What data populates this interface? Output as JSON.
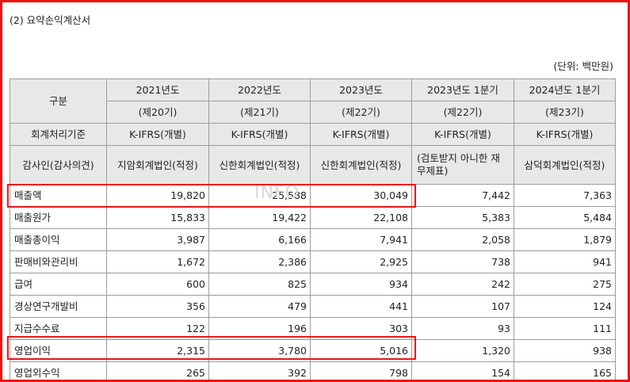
{
  "section_title": "(2) 요약손익계산서",
  "unit": "(단위: 백만원)",
  "watermark": "INFO",
  "table": {
    "category_header": "구분",
    "columns": [
      {
        "year": "2021년도",
        "term": "(제20기)",
        "standard": "K-IFRS(개별)",
        "auditor": "지암회계법인(적정)"
      },
      {
        "year": "2022년도",
        "term": "(제21기)",
        "standard": "K-IFRS(개별)",
        "auditor": "신한회계법인(적정)"
      },
      {
        "year": "2023년도",
        "term": "(제22기)",
        "standard": "K-IFRS(개별)",
        "auditor": "신한회계법인(적정)"
      },
      {
        "year": "2023년도 1분기",
        "term": "(제22기)",
        "standard": "K-IFRS(개별)",
        "auditor": "(검토받지 아니한 재무제표)"
      },
      {
        "year": "2024년도 1분기",
        "term": "(제23기)",
        "standard": "K-IFRS(개별)",
        "auditor": "삼덕회계법인(적정)"
      }
    ],
    "standard_label": "회계처리기준",
    "auditor_label": "감사인(감사의견)",
    "rows": [
      {
        "label": "매출액",
        "values": [
          "19,820",
          "25,588",
          "30,049",
          "7,442",
          "7,363"
        ]
      },
      {
        "label": "매출원가",
        "values": [
          "15,833",
          "19,422",
          "22,108",
          "5,383",
          "5,484"
        ]
      },
      {
        "label": "매출총이익",
        "values": [
          "3,987",
          "6,166",
          "7,941",
          "2,058",
          "1,879"
        ]
      },
      {
        "label": "판매비와관리비",
        "values": [
          "1,672",
          "2,386",
          "2,925",
          "738",
          "941"
        ]
      },
      {
        "label": "급여",
        "values": [
          "600",
          "825",
          "934",
          "242",
          "275"
        ]
      },
      {
        "label": "경상연구개발비",
        "values": [
          "356",
          "479",
          "441",
          "107",
          "124"
        ]
      },
      {
        "label": "지급수수료",
        "values": [
          "122",
          "196",
          "303",
          "93",
          "111"
        ]
      },
      {
        "label": "영업이익",
        "values": [
          "2,315",
          "3,780",
          "5,016",
          "1,320",
          "938"
        ]
      },
      {
        "label": "영업외수익",
        "values": [
          "265",
          "392",
          "798",
          "154",
          "165"
        ]
      }
    ]
  },
  "colors": {
    "highlight": "#e81818",
    "header_bg": "#e8e8e8",
    "grid": "#9c9c9c"
  }
}
